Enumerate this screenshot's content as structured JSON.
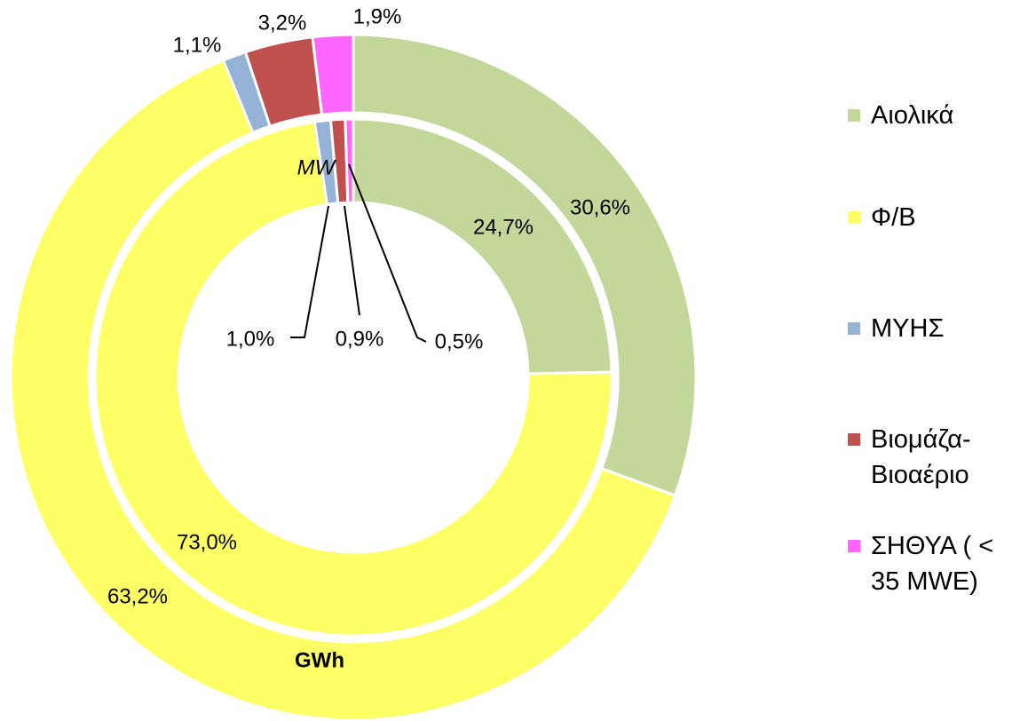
{
  "chart_data": {
    "type": "nested-donut",
    "categories": [
      "Αιολικά",
      "Φ/Β",
      "ΜΥΗΣ",
      "Βιομάζα-Βιοαέριο",
      "ΣΗΘΥΑ ( < 35 MWE)"
    ],
    "colors": [
      "#c4d79b",
      "#ffff66",
      "#95b3d7",
      "#c0504d",
      "#ff66ff"
    ],
    "series": [
      {
        "name": "GWh",
        "values": [
          30.6,
          63.2,
          1.1,
          3.2,
          1.9
        ],
        "value_labels": [
          "30,6%",
          "63,2%",
          "1,1%",
          "3,2%",
          "1,9%"
        ]
      },
      {
        "name": "MW",
        "values": [
          24.7,
          73.0,
          1.0,
          0.9,
          0.5
        ],
        "value_labels": [
          "24,7%",
          "73,0%",
          "1,0%",
          "0,9%",
          "0,5%"
        ]
      }
    ],
    "legend": "right"
  }
}
